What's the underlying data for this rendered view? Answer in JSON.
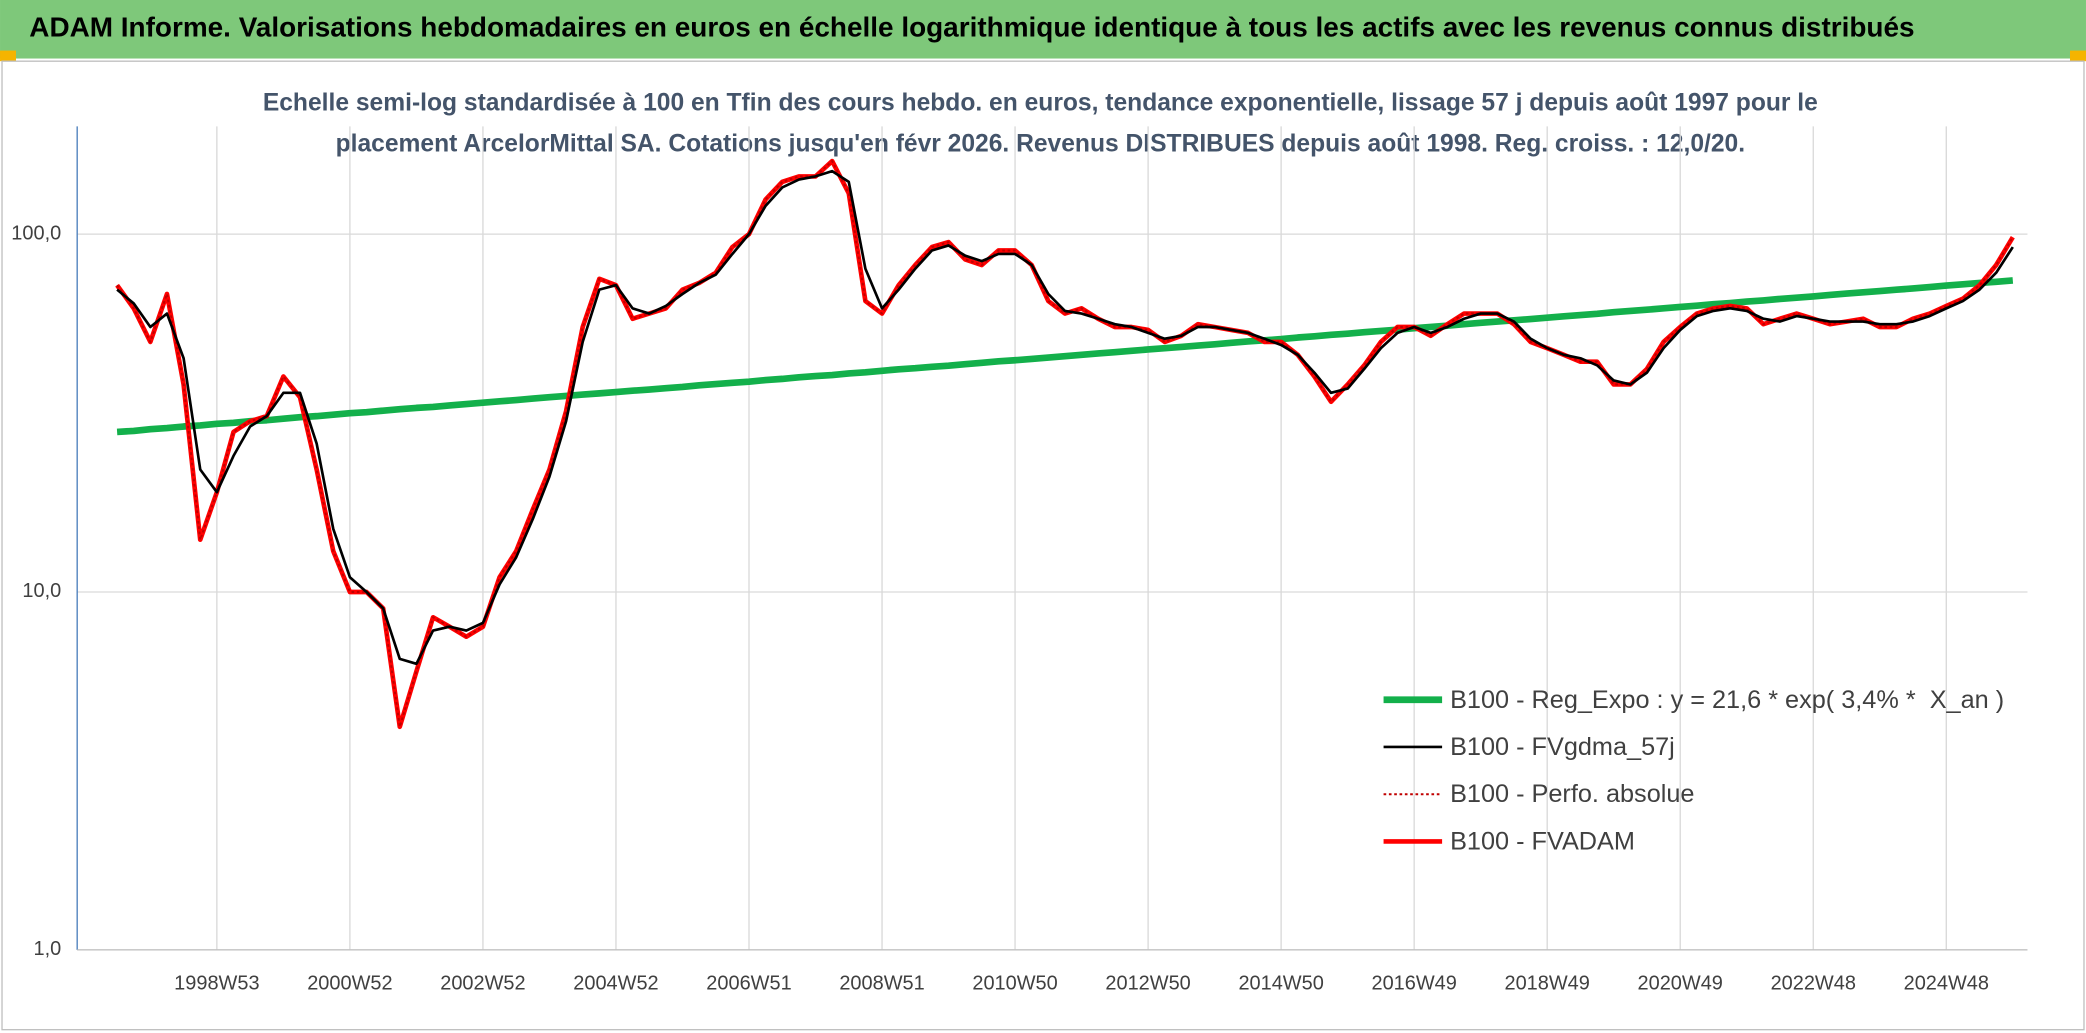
{
  "chart_data": {
    "type": "line",
    "title": "ADAM Informe. Valorisations hebdomadaires en euros en échelle logarithmique identique à tous les actifs avec les revenus connus distribués",
    "subtitle": [
      "Echelle semi-log standardisée à 100 en Tfin des cours hebdo. en euros, tendance exponentielle, lissage 57 j depuis août 1997 pour le",
      "placement ArcelorMittal SA. Cotations jusqu'en févr 2026. Revenus DISTRIBUES depuis août 1998. Reg. croiss. : 12,0/20."
    ],
    "log_scale": true,
    "grid": true,
    "legend": "lower right",
    "ylim": [
      1,
      200
    ],
    "yticks": [
      {
        "value": 1,
        "label": "1,0"
      },
      {
        "value": 10,
        "label": "10,0"
      },
      {
        "value": 100,
        "label": "100,0"
      }
    ],
    "categories": [
      null,
      null,
      null,
      null,
      null,
      null,
      "1998W53",
      null,
      null,
      null,
      null,
      null,
      null,
      null,
      "2000W52",
      null,
      null,
      null,
      null,
      null,
      null,
      null,
      "2002W52",
      null,
      null,
      null,
      null,
      null,
      null,
      null,
      "2004W52",
      null,
      null,
      null,
      null,
      null,
      null,
      null,
      "2006W51",
      null,
      null,
      null,
      null,
      null,
      null,
      null,
      "2008W51",
      null,
      null,
      null,
      null,
      null,
      null,
      null,
      "2010W50",
      null,
      null,
      null,
      null,
      null,
      null,
      null,
      "2012W50",
      null,
      null,
      null,
      null,
      null,
      null,
      null,
      "2014W50",
      null,
      null,
      null,
      null,
      null,
      null,
      null,
      "2016W49",
      null,
      null,
      null,
      null,
      null,
      null,
      null,
      "2018W49",
      null,
      null,
      null,
      null,
      null,
      null,
      null,
      "2020W49",
      null,
      null,
      null,
      null,
      null,
      null,
      null,
      "2022W48",
      null,
      null,
      null,
      null,
      null,
      null,
      null,
      "2024W48",
      null,
      null,
      null,
      null
    ],
    "series": [
      {
        "name": "B100 - Reg_Expo : y = 21,6 * exp( 3,4% *  X_an )",
        "color": "#13b04b",
        "width": 5,
        "dash": "solid",
        "values": [
          28.0,
          28.2,
          28.5,
          28.7,
          29.0,
          29.2,
          29.5,
          29.7,
          30.0,
          30.2,
          30.5,
          30.8,
          31.0,
          31.3,
          31.6,
          31.8,
          32.1,
          32.4,
          32.7,
          32.9,
          33.2,
          33.5,
          33.8,
          34.1,
          34.4,
          34.7,
          35.0,
          35.3,
          35.6,
          35.9,
          36.2,
          36.5,
          36.8,
          37.1,
          37.4,
          37.8,
          38.1,
          38.4,
          38.7,
          39.1,
          39.4,
          39.8,
          40.1,
          40.4,
          40.8,
          41.1,
          41.5,
          41.9,
          42.2,
          42.6,
          42.9,
          43.3,
          43.7,
          44.1,
          44.4,
          44.8,
          45.2,
          45.6,
          46.0,
          46.4,
          46.8,
          47.2,
          47.6,
          48.0,
          48.4,
          48.8,
          49.2,
          49.7,
          50.1,
          50.5,
          50.9,
          51.4,
          51.8,
          52.3,
          52.7,
          53.2,
          53.6,
          54.1,
          54.6,
          55.0,
          55.5,
          56.0,
          56.5,
          57.0,
          57.4,
          57.9,
          58.4,
          58.9,
          59.4,
          59.9,
          60.5,
          61.0,
          61.5,
          62.0,
          62.6,
          63.1,
          63.7,
          64.2,
          64.8,
          65.3,
          65.9,
          66.4,
          67.0,
          67.6,
          68.2,
          68.8,
          69.3,
          69.9,
          70.5,
          71.1,
          71.8,
          72.4,
          73.0,
          73.6,
          74.2
        ]
      },
      {
        "name": "B100 - FVgdma_57j",
        "color": "#000000",
        "width": 2,
        "dash": "solid",
        "values": [
          70,
          64,
          55,
          60,
          45,
          22,
          19,
          24,
          29,
          31,
          36,
          36,
          26,
          15,
          11,
          10,
          9,
          6.5,
          6.3,
          7.8,
          8,
          7.8,
          8.2,
          10.5,
          12.5,
          16,
          21,
          30,
          50,
          70,
          72,
          62,
          60,
          63,
          68,
          73,
          77,
          88,
          100,
          120,
          135,
          142,
          145,
          150,
          140,
          80,
          62,
          70,
          80,
          90,
          93,
          87,
          84,
          88,
          88,
          82,
          68,
          61,
          60,
          58,
          56,
          55,
          53,
          51,
          52,
          55,
          55,
          54,
          53,
          51,
          49,
          46,
          41,
          36,
          37,
          42,
          48,
          53,
          55,
          53,
          55,
          58,
          60,
          60,
          57,
          51,
          48,
          46,
          45,
          43,
          39,
          38,
          41,
          48,
          54,
          59,
          61,
          62,
          61,
          58,
          57,
          59,
          58,
          57,
          57,
          57,
          56,
          56,
          57,
          59,
          62,
          65,
          70,
          78,
          92
        ]
      },
      {
        "name": "B100 - Perfo. absolue",
        "color": "#c00000",
        "width": 1.5,
        "dash": "dotted",
        "values": [
          72,
          62,
          50,
          68,
          38,
          14,
          19,
          28,
          30,
          31,
          40,
          35,
          22,
          13,
          10,
          10,
          9,
          4.2,
          6,
          8.5,
          8,
          7.5,
          8,
          11,
          13,
          17,
          22,
          32,
          55,
          75,
          72,
          58,
          60,
          62,
          70,
          73,
          78,
          92,
          100,
          125,
          140,
          145,
          145,
          160,
          130,
          65,
          60,
          72,
          82,
          92,
          95,
          85,
          82,
          90,
          90,
          82,
          65,
          60,
          62,
          58,
          55,
          55,
          54,
          50,
          52,
          56,
          55,
          54,
          53,
          50,
          50,
          46,
          40,
          34,
          38,
          43,
          50,
          55,
          55,
          52,
          56,
          60,
          60,
          60,
          56,
          50,
          48,
          46,
          44,
          44,
          38,
          38,
          42,
          50,
          55,
          60,
          62,
          63,
          62,
          56,
          58,
          60,
          58,
          56,
          57,
          58,
          55,
          55,
          58,
          60,
          63,
          66,
          72,
          82,
          98
        ]
      },
      {
        "name": "B100 - FVADAM",
        "color": "#ff0000",
        "width": 3.5,
        "dash": "solid",
        "values": [
          72,
          62,
          50,
          68,
          38,
          14,
          19,
          28,
          30,
          31,
          40,
          35,
          22,
          13,
          10,
          10,
          9,
          4.2,
          6,
          8.5,
          8,
          7.5,
          8,
          11,
          13,
          17,
          22,
          32,
          55,
          75,
          72,
          58,
          60,
          62,
          70,
          73,
          78,
          92,
          100,
          125,
          140,
          145,
          145,
          160,
          130,
          65,
          60,
          72,
          82,
          92,
          95,
          85,
          82,
          90,
          90,
          82,
          65,
          60,
          62,
          58,
          55,
          55,
          54,
          50,
          52,
          56,
          55,
          54,
          53,
          50,
          50,
          46,
          40,
          34,
          38,
          43,
          50,
          55,
          55,
          52,
          56,
          60,
          60,
          60,
          56,
          50,
          48,
          46,
          44,
          44,
          38,
          38,
          42,
          50,
          55,
          60,
          62,
          63,
          62,
          56,
          58,
          60,
          58,
          56,
          57,
          58,
          55,
          55,
          58,
          60,
          63,
          66,
          72,
          82,
          98
        ]
      }
    ]
  }
}
